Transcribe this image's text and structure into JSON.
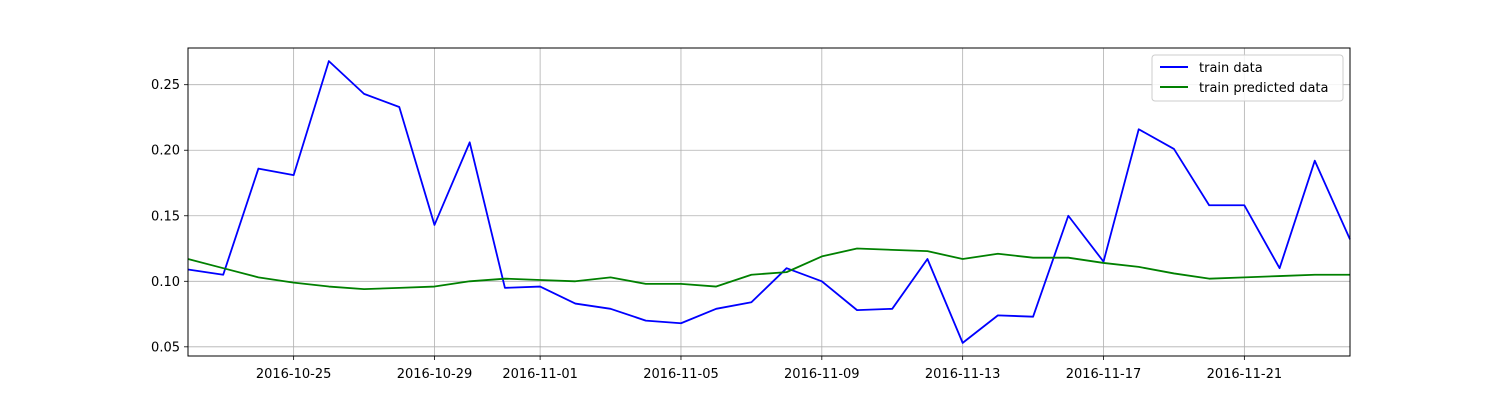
{
  "chart_data": {
    "type": "line",
    "title": "",
    "xlabel": "",
    "ylabel": "",
    "xlim": [
      "2016-10-22",
      "2016-11-24"
    ],
    "ylim": [
      0.043,
      0.278
    ],
    "grid": true,
    "legend_position": "top-right",
    "x_ticks": [
      "2016-10-25",
      "2016-10-29",
      "2016-11-01",
      "2016-11-05",
      "2016-11-09",
      "2016-11-13",
      "2016-11-17",
      "2016-11-21"
    ],
    "y_ticks": [
      "0.05",
      "0.10",
      "0.15",
      "0.20",
      "0.25"
    ],
    "x": [
      "2016-10-22",
      "2016-10-23",
      "2016-10-24",
      "2016-10-25",
      "2016-10-26",
      "2016-10-27",
      "2016-10-28",
      "2016-10-29",
      "2016-10-30",
      "2016-10-31",
      "2016-11-01",
      "2016-11-02",
      "2016-11-03",
      "2016-11-04",
      "2016-11-05",
      "2016-11-06",
      "2016-11-07",
      "2016-11-08",
      "2016-11-09",
      "2016-11-10",
      "2016-11-11",
      "2016-11-12",
      "2016-11-13",
      "2016-11-14",
      "2016-11-15",
      "2016-11-16",
      "2016-11-17",
      "2016-11-18",
      "2016-11-19",
      "2016-11-20",
      "2016-11-21",
      "2016-11-22",
      "2016-11-23",
      "2016-11-24"
    ],
    "series": [
      {
        "name": "train data",
        "color": "#0000ff",
        "values": [
          0.109,
          0.105,
          0.186,
          0.181,
          0.268,
          0.243,
          0.233,
          0.143,
          0.206,
          0.095,
          0.096,
          0.083,
          0.079,
          0.07,
          0.068,
          0.079,
          0.084,
          0.11,
          0.1,
          0.078,
          0.079,
          0.117,
          0.053,
          0.074,
          0.073,
          0.15,
          0.115,
          0.216,
          0.201,
          0.158,
          0.158,
          0.11,
          0.192,
          0.132
        ]
      },
      {
        "name": "train predicted data",
        "color": "#008000",
        "values": [
          0.117,
          0.11,
          0.103,
          0.099,
          0.096,
          0.094,
          0.095,
          0.096,
          0.1,
          0.102,
          0.101,
          0.1,
          0.103,
          0.098,
          0.098,
          0.096,
          0.105,
          0.107,
          0.119,
          0.125,
          0.124,
          0.123,
          0.117,
          0.121,
          0.118,
          0.118,
          0.114,
          0.111,
          0.106,
          0.102,
          0.103,
          0.104,
          0.105,
          0.105
        ]
      }
    ]
  }
}
